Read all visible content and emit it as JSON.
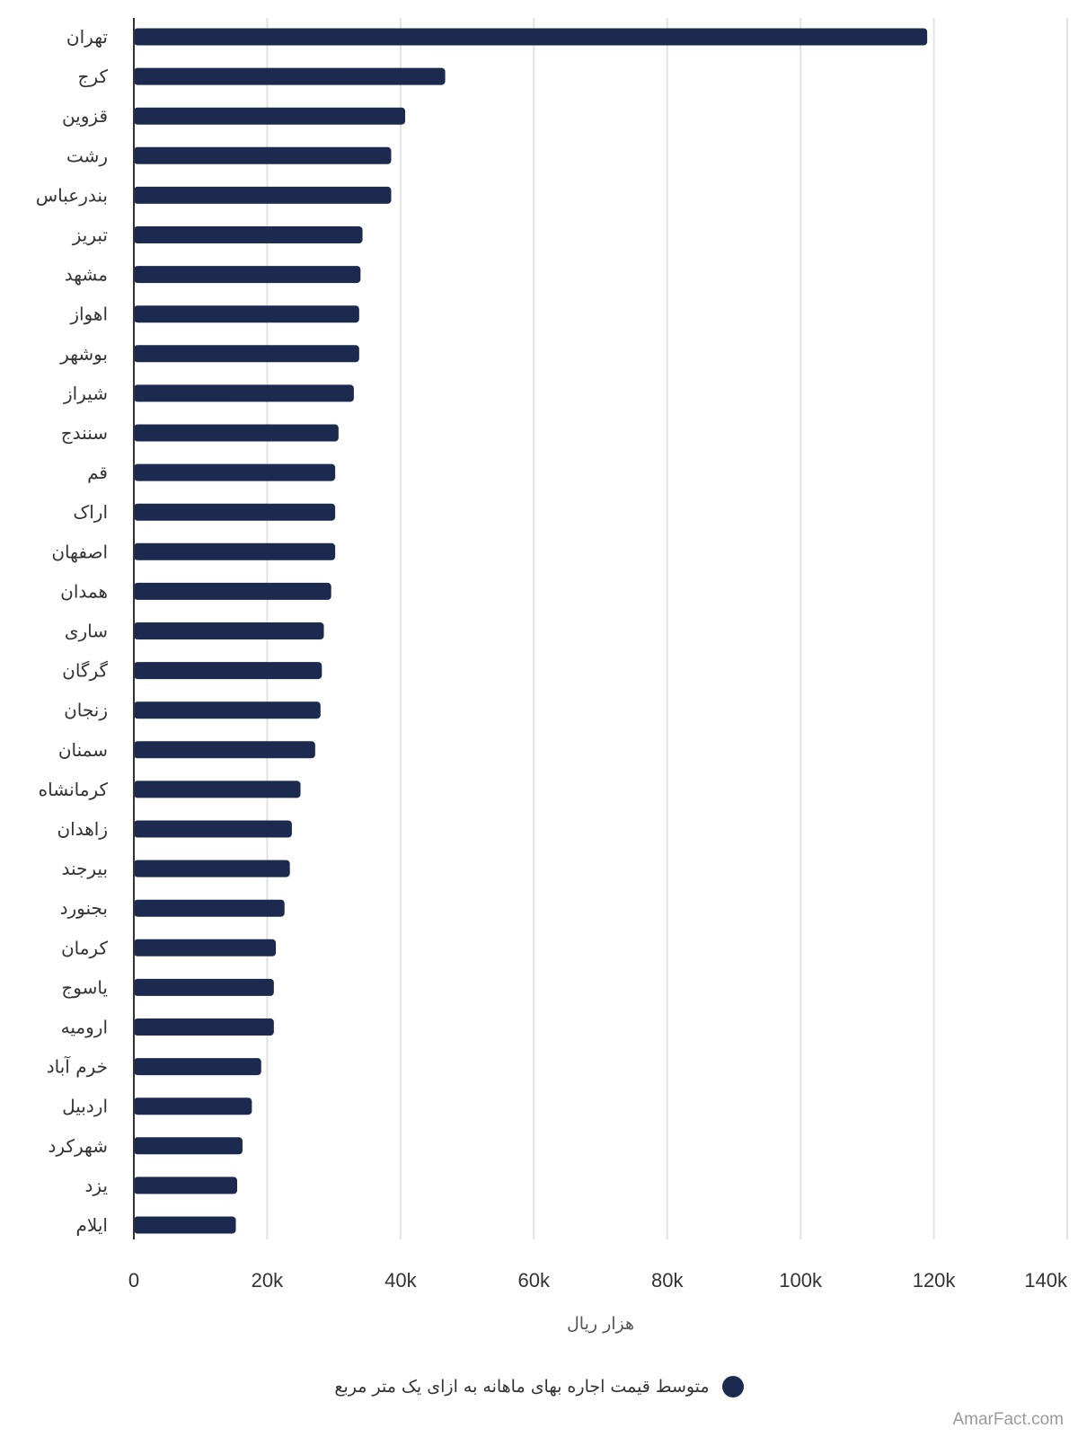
{
  "chart_data": {
    "type": "bar",
    "orientation": "horizontal",
    "categories": [
      "تهران",
      "کرج",
      "قزوین",
      "رشت",
      "بندرعباس",
      "تبریز",
      "مشهد",
      "اهواز",
      "بوشهر",
      "شیراز",
      "سنندج",
      "قم",
      "اراک",
      "اصفهان",
      "همدان",
      "ساری",
      "گرگان",
      "زنجان",
      "سمنان",
      "کرمانشاه",
      "زاهدان",
      "بیرجند",
      "بجنورد",
      "کرمان",
      "یاسوج",
      "ارومیه",
      "خرم آباد",
      "اردبیل",
      "شهرکرد",
      "یزد",
      "ایلام"
    ],
    "series": [
      {
        "name": "متوسط قیمت اجاره بهای ماهانه به ازای یک متر مربع",
        "color": "#1b2a4e",
        "values": [
          119000,
          46700,
          40700,
          38600,
          38600,
          34300,
          34000,
          33800,
          33800,
          33000,
          30700,
          30200,
          30200,
          30200,
          29600,
          28500,
          28200,
          28000,
          27200,
          25000,
          23700,
          23400,
          22600,
          21300,
          21000,
          21000,
          19100,
          17700,
          16300,
          15500,
          15300
        ]
      }
    ],
    "xlabel": "هزار ریال",
    "xlim": [
      0,
      140000
    ],
    "xticks": [
      0,
      20000,
      40000,
      60000,
      80000,
      100000,
      120000,
      140000
    ],
    "xtick_labels": [
      "0",
      "20k",
      "40k",
      "60k",
      "80k",
      "100k",
      "120k",
      "140k"
    ],
    "grid": true,
    "legend_position": "bottom"
  },
  "watermark": "AmarFact.com"
}
